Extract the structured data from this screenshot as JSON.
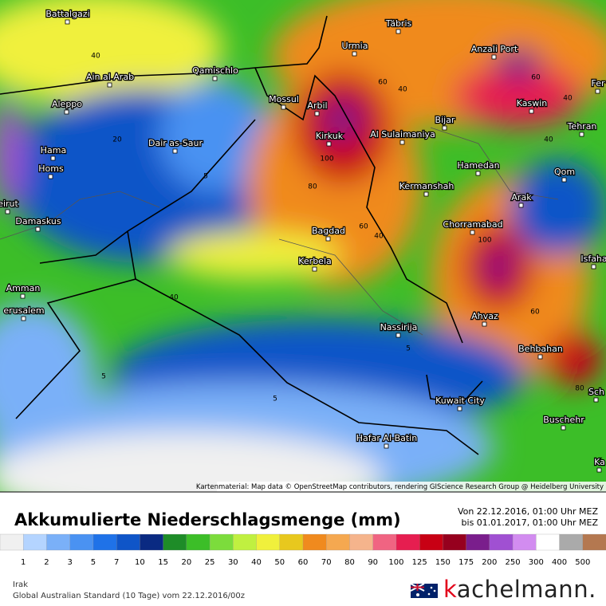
{
  "map": {
    "cities": [
      "Battalgazi",
      "Täbris",
      "Urmia",
      "Anzali Port",
      "Fer",
      "Ain al Arab",
      "Qamischlo",
      "Mossul",
      "Arbil",
      "Aleppo",
      "Kaswin",
      "Tehran",
      "Bijar",
      "Kirkuk",
      "Al Sulaimaniya",
      "Hama",
      "Dair as-Saur",
      "Homs",
      "Hamedan",
      "Qom",
      "Kermanshah",
      "Arak",
      "eirut",
      "Damaskus",
      "Chorramabad",
      "Bagdad",
      "Isfaha",
      "Kerbela",
      "Amman",
      "erusalem",
      "Ahvaz",
      "Nassirija",
      "Behbahan",
      "Sch",
      "Kuwait City",
      "Buschehr",
      "Hafar Al-Batin",
      "Ka"
    ],
    "contour_labels": [
      40,
      60,
      40,
      20,
      100,
      5,
      80,
      60,
      40,
      40,
      40,
      60,
      100,
      60,
      40,
      5,
      5,
      5,
      80
    ],
    "attribution": "Kartenmaterial: Map data © OpenStreetMap contributors, rendering GIScience Research Group @ Heidelberg University"
  },
  "title": "Akkumulierte Niederschlagsmenge (mm)",
  "period": [
    "Von 22.12.2016, 01:00 Uhr MEZ",
    "bis 01.01.2017, 01:00 Uhr MEZ"
  ],
  "legend": {
    "values": [
      1,
      2,
      3,
      5,
      7,
      10,
      15,
      20,
      25,
      30,
      40,
      50,
      60,
      70,
      80,
      90,
      100,
      125,
      150,
      175,
      200,
      250,
      300,
      400,
      500
    ],
    "colors": [
      "#f0f0f0",
      "#b4d4ff",
      "#7ab0f8",
      "#4a92f2",
      "#1f72e8",
      "#0f55c8",
      "#0a2a82",
      "#1e8c28",
      "#3cbe28",
      "#7cdc3c",
      "#c0f040",
      "#f0f03c",
      "#e8c81e",
      "#f08a1e",
      "#f5a850",
      "#f5b48c",
      "#f06482",
      "#e61e50",
      "#c80014",
      "#96001e",
      "#7a1e8c",
      "#a050d2",
      "#d28cf0",
      "#ffffff",
      "#aaaaaa",
      "#b47850"
    ]
  },
  "region": "Irak",
  "model": "Global Australian Standard (10 Tage) vom 22.12.2016/00z",
  "brand": "kachelmann."
}
